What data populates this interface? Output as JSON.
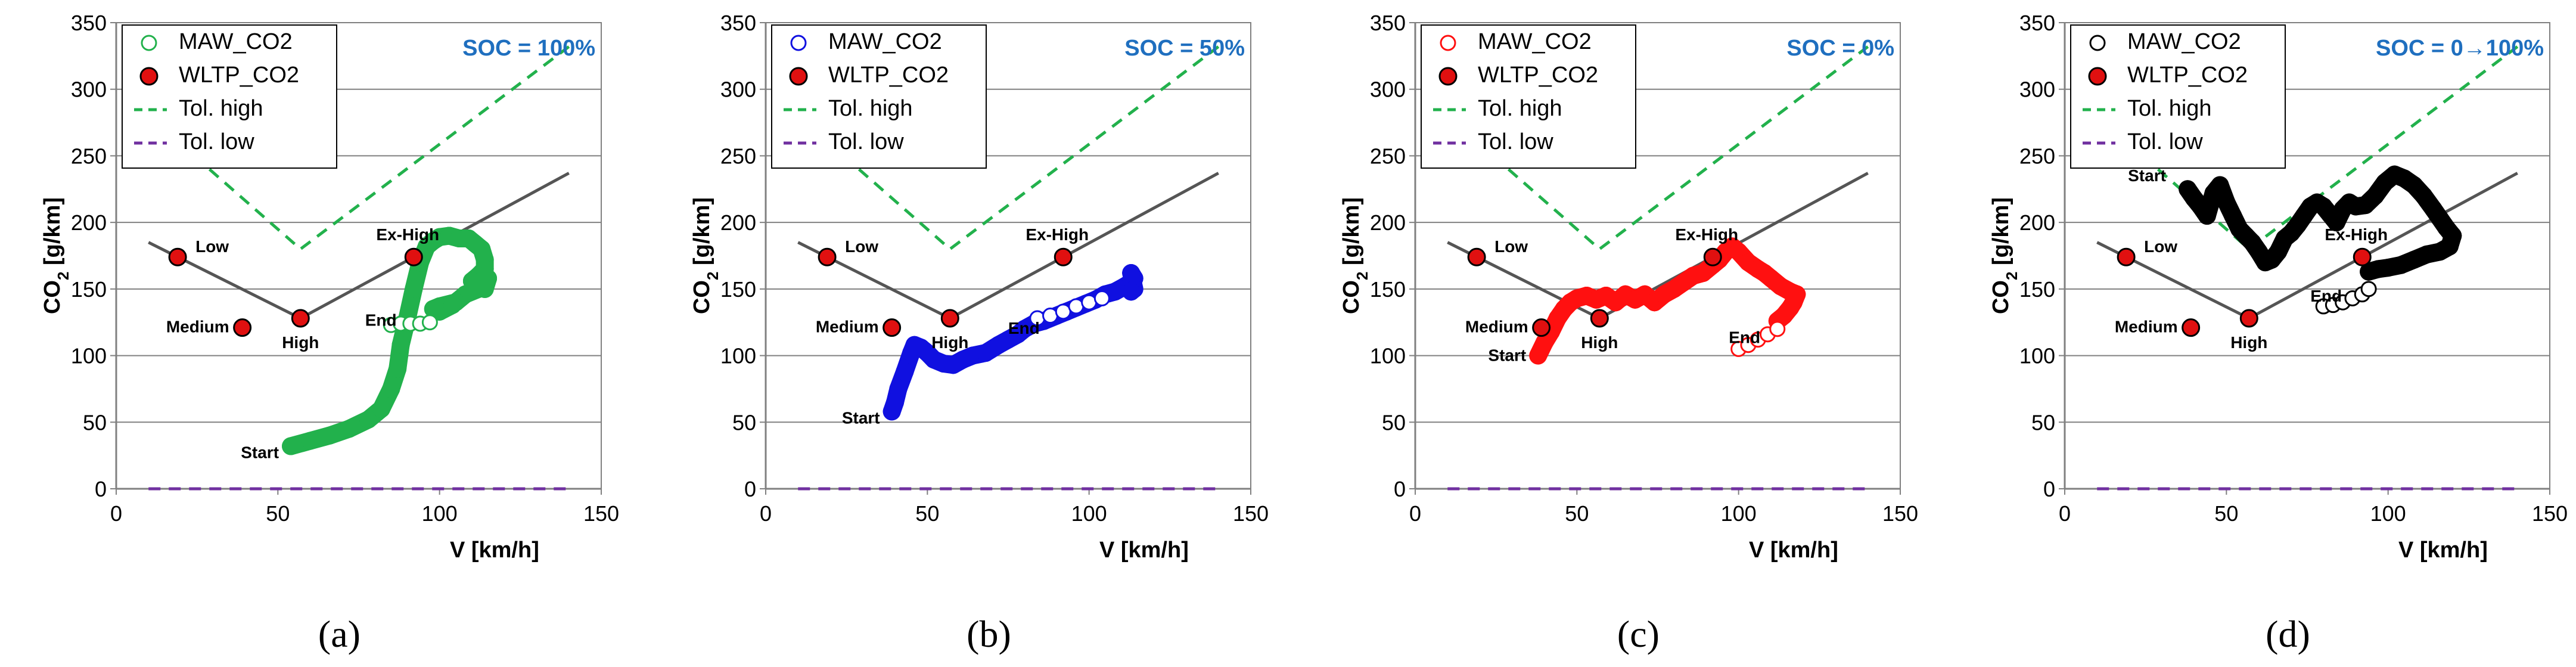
{
  "colors": {
    "grid": "#808080",
    "tol_high": "#22b14c",
    "tol_low": "#7030a0",
    "wltp_fill": "#e01010",
    "reference_line": "#555555",
    "soc_text": "#1f6fbf"
  },
  "shared": {
    "xlabel": "V [km/h]",
    "ylabel": "CO2 [g/km]",
    "xlim": [
      0,
      150
    ],
    "ylim": [
      0,
      350
    ],
    "xticks": [
      "0",
      "50",
      "100",
      "150"
    ],
    "yticks": [
      "0",
      "50",
      "100",
      "150",
      "200",
      "250",
      "300",
      "350"
    ],
    "legend": {
      "maw": "MAW_CO2",
      "wltp": "WLTP_CO2",
      "tol_high": "Tol. high",
      "tol_low": "Tol. low"
    },
    "wltp_points": [
      {
        "name": "Low",
        "x": 19,
        "y": 174
      },
      {
        "name": "Medium",
        "x": 39,
        "y": 121
      },
      {
        "name": "High",
        "x": 57,
        "y": 128
      },
      {
        "name": "Ex-High",
        "x": 92,
        "y": 174
      }
    ],
    "reference_line": {
      "x": [
        10,
        57,
        140
      ],
      "y": [
        185,
        128,
        237
      ]
    },
    "tol_high": {
      "x": [
        10,
        57,
        140
      ],
      "y": [
        280,
        180,
        332
      ]
    },
    "tol_low": {
      "x": [
        10,
        140
      ],
      "y": [
        0,
        0
      ]
    }
  },
  "chart_data": [
    {
      "type": "scatter",
      "panel_label": "(a)",
      "soc_label": "SOC = 100%",
      "maw_color": "#22b14c",
      "start_label": "Start",
      "end_label": "End",
      "start_point": {
        "x": 54,
        "y": 32
      },
      "end_point": {
        "x": 80,
        "y": 118
      },
      "trace": [
        [
          54,
          32
        ],
        [
          60,
          36
        ],
        [
          66,
          40
        ],
        [
          72,
          45
        ],
        [
          78,
          52
        ],
        [
          82,
          60
        ],
        [
          85,
          75
        ],
        [
          87,
          90
        ],
        [
          88,
          108
        ],
        [
          90,
          128
        ],
        [
          92,
          150
        ],
        [
          94,
          170
        ],
        [
          96,
          182
        ],
        [
          98,
          186
        ],
        [
          100,
          189
        ],
        [
          103,
          190
        ],
        [
          106,
          188
        ],
        [
          109,
          188
        ],
        [
          111,
          184
        ],
        [
          113,
          180
        ],
        [
          114,
          172
        ],
        [
          114,
          165
        ],
        [
          112,
          160
        ],
        [
          110,
          156
        ],
        [
          112,
          152
        ],
        [
          114,
          150
        ],
        [
          115,
          158
        ],
        [
          112,
          150
        ],
        [
          108,
          146
        ],
        [
          105,
          140
        ],
        [
          100,
          137
        ],
        [
          98,
          135
        ],
        [
          100,
          133
        ],
        [
          104,
          138
        ]
      ],
      "trace_open": [
        [
          85,
          123
        ],
        [
          88,
          124
        ],
        [
          91,
          124
        ],
        [
          94,
          124
        ],
        [
          97,
          125
        ]
      ]
    },
    {
      "type": "scatter",
      "panel_label": "(b)",
      "soc_label": "SOC = 50%",
      "maw_color": "#1010e0",
      "start_label": "Start",
      "end_label": "End",
      "start_point": {
        "x": 39,
        "y": 58
      },
      "end_point": {
        "x": 78,
        "y": 112
      },
      "trace": [
        [
          39,
          58
        ],
        [
          40,
          65
        ],
        [
          41,
          75
        ],
        [
          43,
          88
        ],
        [
          45,
          102
        ],
        [
          46,
          108
        ],
        [
          48,
          106
        ],
        [
          50,
          102
        ],
        [
          52,
          97
        ],
        [
          55,
          94
        ],
        [
          58,
          93
        ],
        [
          61,
          97
        ],
        [
          64,
          100
        ],
        [
          68,
          102
        ],
        [
          72,
          108
        ],
        [
          75,
          112
        ],
        [
          78,
          116
        ],
        [
          80,
          120
        ],
        [
          83,
          124
        ],
        [
          86,
          126
        ],
        [
          90,
          130
        ],
        [
          93,
          133
        ],
        [
          96,
          136
        ],
        [
          99,
          139
        ],
        [
          102,
          142
        ],
        [
          105,
          146
        ],
        [
          108,
          148
        ],
        [
          111,
          152
        ],
        [
          113,
          155
        ],
        [
          114,
          158
        ],
        [
          113,
          162
        ],
        [
          114,
          150
        ],
        [
          113,
          148
        ]
      ],
      "trace_open": [
        [
          84,
          128
        ],
        [
          88,
          130
        ],
        [
          92,
          133
        ],
        [
          96,
          137
        ],
        [
          100,
          140
        ],
        [
          104,
          143
        ]
      ]
    },
    {
      "type": "scatter",
      "panel_label": "(c)",
      "soc_label": "SOC = 0%",
      "maw_color": "#ff1010",
      "start_label": "Start",
      "end_label": "End",
      "start_point": {
        "x": 38,
        "y": 105
      },
      "end_point": {
        "x": 100,
        "y": 105
      },
      "trace": [
        [
          38,
          100
        ],
        [
          40,
          110
        ],
        [
          42,
          118
        ],
        [
          44,
          128
        ],
        [
          46,
          135
        ],
        [
          48,
          140
        ],
        [
          50,
          143
        ],
        [
          53,
          145
        ],
        [
          56,
          142
        ],
        [
          59,
          145
        ],
        [
          62,
          140
        ],
        [
          65,
          146
        ],
        [
          68,
          142
        ],
        [
          71,
          146
        ],
        [
          74,
          140
        ],
        [
          77,
          146
        ],
        [
          80,
          150
        ],
        [
          83,
          155
        ],
        [
          86,
          160
        ],
        [
          89,
          162
        ],
        [
          92,
          168
        ],
        [
          94,
          172
        ],
        [
          96,
          178
        ],
        [
          98,
          182
        ],
        [
          100,
          178
        ],
        [
          103,
          170
        ],
        [
          106,
          165
        ],
        [
          108,
          162
        ],
        [
          110,
          158
        ],
        [
          113,
          152
        ],
        [
          116,
          148
        ],
        [
          118,
          146
        ],
        [
          117,
          140
        ],
        [
          116,
          136
        ],
        [
          114,
          130
        ],
        [
          112,
          126
        ]
      ],
      "trace_open": [
        [
          100,
          105
        ],
        [
          103,
          108
        ],
        [
          106,
          112
        ],
        [
          109,
          116
        ],
        [
          112,
          120
        ]
      ]
    },
    {
      "type": "scatter",
      "panel_label": "(d)",
      "soc_label": "SOC = 0→100%",
      "maw_color": "#000000",
      "start_label": "Start",
      "end_label": "End",
      "start_point": {
        "x": 35,
        "y": 240
      },
      "end_point": {
        "x": 79,
        "y": 136
      },
      "trace": [
        [
          38,
          225
        ],
        [
          40,
          218
        ],
        [
          42,
          212
        ],
        [
          44,
          205
        ],
        [
          46,
          222
        ],
        [
          48,
          228
        ],
        [
          50,
          215
        ],
        [
          52,
          205
        ],
        [
          54,
          195
        ],
        [
          56,
          190
        ],
        [
          58,
          185
        ],
        [
          60,
          178
        ],
        [
          62,
          170
        ],
        [
          64,
          172
        ],
        [
          66,
          178
        ],
        [
          68,
          188
        ],
        [
          70,
          192
        ],
        [
          72,
          198
        ],
        [
          74,
          205
        ],
        [
          76,
          212
        ],
        [
          78,
          215
        ],
        [
          80,
          212
        ],
        [
          82,
          206
        ],
        [
          84,
          200
        ],
        [
          86,
          210
        ],
        [
          88,
          215
        ],
        [
          90,
          212
        ],
        [
          93,
          213
        ],
        [
          96,
          220
        ],
        [
          99,
          230
        ],
        [
          102,
          236
        ],
        [
          105,
          233
        ],
        [
          108,
          228
        ],
        [
          111,
          220
        ],
        [
          114,
          210
        ],
        [
          116,
          203
        ],
        [
          118,
          196
        ],
        [
          120,
          190
        ],
        [
          119,
          182
        ],
        [
          116,
          178
        ],
        [
          112,
          176
        ],
        [
          108,
          172
        ],
        [
          104,
          168
        ],
        [
          100,
          166
        ],
        [
          97,
          165
        ],
        [
          94,
          163
        ]
      ],
      "trace_open": [
        [
          80,
          137
        ],
        [
          83,
          138
        ],
        [
          86,
          140
        ],
        [
          89,
          143
        ],
        [
          92,
          146
        ],
        [
          94,
          150
        ]
      ]
    }
  ],
  "panels": [
    {
      "panel_label": "(a)",
      "soc_label": "SOC = 100%"
    },
    {
      "panel_label": "(b)",
      "soc_label": "SOC = 50%"
    },
    {
      "panel_label": "(c)",
      "soc_label": "SOC = 0%"
    },
    {
      "panel_label": "(d)",
      "soc_label": "SOC = 0→100%"
    }
  ]
}
